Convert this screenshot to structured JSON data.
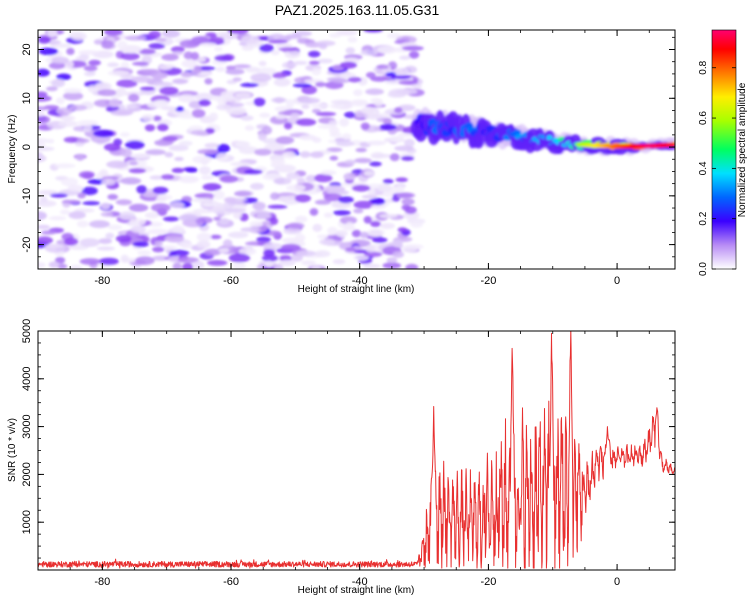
{
  "title": "PAZ1.2025.163.11.05.G31",
  "chart_data": [
    {
      "type": "heatmap",
      "xlabel": "Height of straight line (km)",
      "ylabel": "Frequency (Hz)",
      "xlim": [
        -90,
        9
      ],
      "ylim": [
        -25,
        24
      ],
      "xticks": [
        -80,
        -60,
        -40,
        -20,
        0
      ],
      "yticks": [
        -20,
        -10,
        0,
        10,
        20
      ],
      "noise_region": {
        "x_range": [
          -90,
          -31
        ],
        "y_range": [
          -25,
          24
        ],
        "amplitude_range": [
          0.02,
          0.2
        ]
      },
      "signal_ridge": [
        {
          "x": -31,
          "y": 4.5,
          "amplitude": 0.2
        },
        {
          "x": -28,
          "y": 4.5,
          "amplitude": 0.3
        },
        {
          "x": -25,
          "y": 3.8,
          "amplitude": 0.3
        },
        {
          "x": -20,
          "y": 3.0,
          "amplitude": 0.3
        },
        {
          "x": -15,
          "y": 2.0,
          "amplitude": 0.35
        },
        {
          "x": -10,
          "y": 1.0,
          "amplitude": 0.4
        },
        {
          "x": -5,
          "y": 0.4,
          "amplitude": 0.6
        },
        {
          "x": 0,
          "y": 0.1,
          "amplitude": 0.8
        },
        {
          "x": 5,
          "y": 0.2,
          "amplitude": 0.95
        },
        {
          "x": 9,
          "y": 0.5,
          "amplitude": 0.85
        }
      ],
      "colorbar": {
        "label": "Normalized spectral amplitude",
        "range": [
          0.0,
          0.95
        ],
        "ticks": [
          0.0,
          0.2,
          0.4,
          0.6,
          0.8
        ],
        "tick_labels": [
          "0.0",
          "0.2",
          "0.4",
          "0.6",
          "0.8"
        ]
      }
    },
    {
      "type": "line",
      "xlabel": "Height of straight line (km)",
      "ylabel": "SNR (10 * v/v)",
      "xlim": [
        -90,
        9
      ],
      "ylim": [
        0,
        5000
      ],
      "xticks": [
        -80,
        -60,
        -40,
        -20,
        0
      ],
      "yticks": [
        1000,
        2000,
        3000,
        4000,
        5000
      ],
      "color": "#e83030",
      "envelope": [
        {
          "x": -90,
          "mean": 120,
          "spread": 60
        },
        {
          "x": -31,
          "mean": 120,
          "spread": 60
        },
        {
          "x": -30,
          "mean": 500,
          "spread": 600
        },
        {
          "x": -28,
          "mean": 1300,
          "spread": 1500
        },
        {
          "x": -26,
          "mean": 1100,
          "spread": 1100
        },
        {
          "x": -22,
          "mean": 1000,
          "spread": 1100
        },
        {
          "x": -18,
          "mean": 1400,
          "spread": 1900
        },
        {
          "x": -13,
          "mean": 1500,
          "spread": 2100
        },
        {
          "x": -8,
          "mean": 1700,
          "spread": 2300
        },
        {
          "x": -5,
          "mean": 1600,
          "spread": 900
        },
        {
          "x": -3,
          "mean": 2300,
          "spread": 500
        },
        {
          "x": 0,
          "mean": 2350,
          "spread": 250
        },
        {
          "x": 4,
          "mean": 2400,
          "spread": 300
        },
        {
          "x": 6,
          "mean": 3000,
          "spread": 500
        },
        {
          "x": 7,
          "mean": 2200,
          "spread": 200
        },
        {
          "x": 9,
          "mean": 2050,
          "spread": 100
        }
      ],
      "peaks": [
        {
          "x": -28.5,
          "y": 3420
        },
        {
          "x": -16.3,
          "y": 4870
        },
        {
          "x": -10.2,
          "y": 4950
        },
        {
          "x": -7.2,
          "y": 5050
        },
        {
          "x": -1.5,
          "y": 3000
        },
        {
          "x": 6.2,
          "y": 3420
        }
      ]
    }
  ]
}
